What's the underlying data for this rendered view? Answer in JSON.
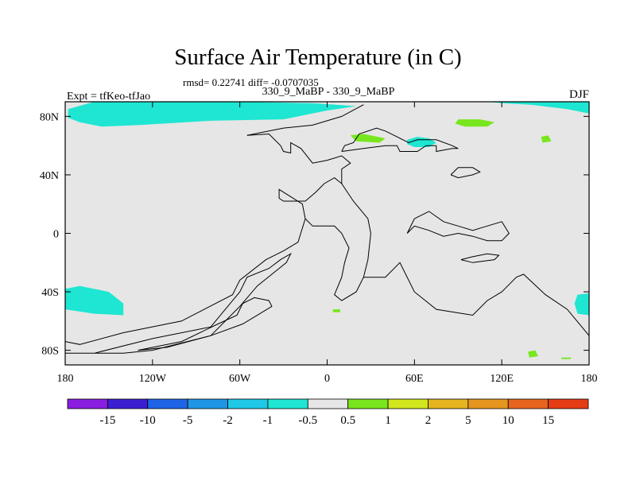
{
  "chart_data": {
    "type": "heatmap",
    "title": "Surface Air Temperature (in C)",
    "stats_line": "rmsd= 0.22741 diff= -0.0707035",
    "subtitle": "330_9_MaBP - 330_9_MaBP",
    "left_label": "Expt = tfKeo-tfJao",
    "right_label": "DJF",
    "xlim": [
      -180,
      180
    ],
    "ylim": [
      -90,
      90
    ],
    "x_ticks": [
      {
        "value": -180,
        "label": "180"
      },
      {
        "value": -120,
        "label": "120W"
      },
      {
        "value": -60,
        "label": "60W"
      },
      {
        "value": 0,
        "label": "0"
      },
      {
        "value": 60,
        "label": "60E"
      },
      {
        "value": 120,
        "label": "120E"
      },
      {
        "value": 180,
        "label": "180"
      }
    ],
    "y_ticks": [
      {
        "value": 80,
        "label": "80N"
      },
      {
        "value": 40,
        "label": "40N"
      },
      {
        "value": 0,
        "label": "0"
      },
      {
        "value": -40,
        "label": "40S"
      },
      {
        "value": -80,
        "label": "80S"
      }
    ],
    "background_color": "#e6e6e6",
    "colorbar": {
      "labels": [
        "-15",
        "-10",
        "-5",
        "-2",
        "-1",
        "-0.5",
        "0.5",
        "1",
        "2",
        "5",
        "10",
        "15"
      ],
      "colors": [
        "#8a1ee0",
        "#3c1ed2",
        "#1e64e6",
        "#1e96e6",
        "#1ec8e6",
        "#1ee6d2",
        "#e6e6e6",
        "#78e61e",
        "#d2e61e",
        "#e6b41e",
        "#e6961e",
        "#e6641e",
        "#e63c14"
      ]
    },
    "regions": [
      {
        "name": "arctic-band",
        "color": "#1ee6d2",
        "points": [
          [
            -178,
            85
          ],
          [
            -160,
            90
          ],
          [
            -60,
            90
          ],
          [
            -10,
            89
          ],
          [
            20,
            87
          ],
          [
            0,
            84
          ],
          [
            -30,
            78
          ],
          [
            -80,
            77
          ],
          [
            -130,
            74
          ],
          [
            -155,
            73
          ],
          [
            -170,
            76
          ],
          [
            -178,
            79
          ]
        ]
      },
      {
        "name": "arctic-east",
        "color": "#1ee6d2",
        "points": [
          [
            110,
            90
          ],
          [
            180,
            90
          ],
          [
            180,
            82
          ],
          [
            165,
            85
          ],
          [
            140,
            88
          ],
          [
            120,
            89
          ]
        ]
      },
      {
        "name": "central-asia",
        "color": "#1ee6d2",
        "points": [
          [
            55,
            64
          ],
          [
            62,
            66
          ],
          [
            70,
            65
          ],
          [
            75,
            62
          ],
          [
            70,
            59
          ],
          [
            60,
            59
          ],
          [
            55,
            61
          ]
        ]
      },
      {
        "name": "pacific-north",
        "color": "#78e61e",
        "points": [
          [
            90,
            78
          ],
          [
            105,
            78
          ],
          [
            115,
            76
          ],
          [
            110,
            73
          ],
          [
            95,
            73
          ],
          [
            88,
            75
          ]
        ]
      },
      {
        "name": "north-africa-green",
        "color": "#78e61e",
        "points": [
          [
            16,
            67
          ],
          [
            25,
            68
          ],
          [
            40,
            65
          ],
          [
            36,
            62
          ],
          [
            20,
            63
          ]
        ]
      },
      {
        "name": "north-pacific-green",
        "color": "#78e61e",
        "points": [
          [
            147,
            66
          ],
          [
            152,
            67
          ],
          [
            154,
            63
          ],
          [
            148,
            62
          ]
        ]
      },
      {
        "name": "southern-ocean-west",
        "color": "#1ee6d2",
        "points": [
          [
            -180,
            -38
          ],
          [
            -170,
            -36
          ],
          [
            -150,
            -40
          ],
          [
            -140,
            -48
          ],
          [
            -140,
            -56
          ],
          [
            -160,
            -55
          ],
          [
            -180,
            -52
          ]
        ]
      },
      {
        "name": "southern-ocean-east",
        "color": "#1ee6d2",
        "points": [
          [
            172,
            -42
          ],
          [
            180,
            -41
          ],
          [
            180,
            -56
          ],
          [
            172,
            -55
          ],
          [
            170,
            -48
          ]
        ]
      },
      {
        "name": "antarctic-green",
        "color": "#78e61e",
        "points": [
          [
            138,
            -81
          ],
          [
            143,
            -80
          ],
          [
            145,
            -84
          ],
          [
            139,
            -85
          ]
        ]
      },
      {
        "name": "antarctic-green-small",
        "color": "#78e61e",
        "points": [
          [
            161,
            -85
          ],
          [
            168,
            -85
          ],
          [
            167,
            -86
          ],
          [
            161,
            -86
          ]
        ]
      },
      {
        "name": "ocean-speck",
        "color": "#78e61e",
        "points": [
          [
            4,
            -52
          ],
          [
            9,
            -52
          ],
          [
            9,
            -54
          ],
          [
            4,
            -54
          ]
        ]
      }
    ],
    "coastlines": [
      [
        [
          -180,
          -74
        ],
        [
          -170,
          -76
        ],
        [
          -140,
          -68
        ],
        [
          -100,
          -60
        ],
        [
          -65,
          -42
        ],
        [
          -60,
          -32
        ],
        [
          -42,
          -18
        ],
        [
          -30,
          -12
        ],
        [
          -20,
          -6
        ],
        [
          -15,
          10
        ],
        [
          -17,
          20
        ],
        [
          -33,
          30
        ],
        [
          -33,
          24
        ],
        [
          -30,
          22
        ],
        [
          -15,
          22
        ],
        [
          -8,
          28
        ],
        [
          -2,
          34
        ],
        [
          5,
          38
        ],
        [
          10,
          34
        ],
        [
          10,
          44
        ],
        [
          16,
          48
        ],
        [
          10,
          53
        ],
        [
          0,
          50
        ],
        [
          -10,
          48
        ],
        [
          -18,
          58
        ],
        [
          -25,
          62
        ],
        [
          -25,
          55
        ],
        [
          -30,
          56
        ],
        [
          -32,
          60
        ],
        [
          -40,
          68
        ],
        [
          -55,
          67
        ]
      ],
      [
        [
          -55,
          67
        ],
        [
          -40,
          70
        ],
        [
          -30,
          72
        ],
        [
          -10,
          74
        ],
        [
          10,
          80
        ],
        [
          25,
          88
        ]
      ],
      [
        [
          -180,
          -82
        ],
        [
          -160,
          -82
        ],
        [
          -120,
          -72
        ],
        [
          -80,
          -64
        ],
        [
          -70,
          -52
        ],
        [
          -60,
          -40
        ],
        [
          -55,
          -30
        ],
        [
          -40,
          -24
        ],
        [
          -32,
          -18
        ],
        [
          -25,
          -14
        ],
        [
          -28,
          -20
        ],
        [
          -38,
          -28
        ],
        [
          -48,
          -36
        ],
        [
          -60,
          -50
        ],
        [
          -80,
          -70
        ],
        [
          -120,
          -80
        ],
        [
          -140,
          -82
        ],
        [
          -180,
          -82
        ]
      ],
      [
        [
          -130,
          -80
        ],
        [
          -100,
          -74
        ],
        [
          -75,
          -62
        ],
        [
          -62,
          -56
        ],
        [
          -58,
          -48
        ],
        [
          -50,
          -44
        ],
        [
          -40,
          -46
        ],
        [
          -38,
          -50
        ],
        [
          -58,
          -62
        ],
        [
          -80,
          -70
        ],
        [
          -110,
          -78
        ],
        [
          -130,
          -80
        ]
      ],
      [
        [
          10,
          56
        ],
        [
          25,
          58
        ],
        [
          40,
          60
        ],
        [
          48,
          60
        ],
        [
          50,
          56
        ],
        [
          62,
          56
        ],
        [
          68,
          60
        ],
        [
          75,
          60
        ],
        [
          75,
          56
        ],
        [
          86,
          58
        ],
        [
          90,
          58
        ],
        [
          86,
          60
        ],
        [
          75,
          64
        ],
        [
          68,
          64
        ],
        [
          62,
          64
        ],
        [
          56,
          62
        ],
        [
          48,
          66
        ],
        [
          40,
          70
        ],
        [
          34,
          72
        ],
        [
          22,
          68
        ],
        [
          18,
          62
        ],
        [
          12,
          60
        ],
        [
          10,
          56
        ]
      ],
      [
        [
          10,
          34
        ],
        [
          18,
          22
        ],
        [
          28,
          10
        ],
        [
          30,
          0
        ],
        [
          28,
          -18
        ],
        [
          25,
          -30
        ],
        [
          20,
          -40
        ],
        [
          10,
          -46
        ],
        [
          5,
          -42
        ],
        [
          10,
          -30
        ],
        [
          12,
          -20
        ],
        [
          15,
          -10
        ],
        [
          10,
          0
        ],
        [
          5,
          5
        ],
        [
          -5,
          5
        ],
        [
          -10,
          5
        ],
        [
          -15,
          10
        ]
      ],
      [
        [
          25,
          -30
        ],
        [
          40,
          -30
        ],
        [
          50,
          -20
        ],
        [
          60,
          -40
        ],
        [
          75,
          -52
        ],
        [
          100,
          -56
        ],
        [
          110,
          -46
        ],
        [
          120,
          -40
        ],
        [
          130,
          -30
        ],
        [
          135,
          -28
        ],
        [
          150,
          -42
        ],
        [
          165,
          -52
        ],
        [
          180,
          -70
        ]
      ],
      [
        [
          60,
          10
        ],
        [
          70,
          15
        ],
        [
          80,
          8
        ],
        [
          90,
          5
        ],
        [
          100,
          2
        ],
        [
          110,
          5
        ],
        [
          120,
          8
        ],
        [
          125,
          0
        ],
        [
          120,
          -5
        ],
        [
          110,
          -5
        ],
        [
          100,
          -2
        ],
        [
          90,
          0
        ],
        [
          80,
          -2
        ],
        [
          70,
          2
        ],
        [
          60,
          5
        ],
        [
          55,
          0
        ],
        [
          60,
          10
        ]
      ],
      [
        [
          85,
          40
        ],
        [
          90,
          45
        ],
        [
          100,
          45
        ],
        [
          105,
          42
        ],
        [
          100,
          40
        ],
        [
          90,
          38
        ],
        [
          85,
          40
        ]
      ],
      [
        [
          92,
          -18
        ],
        [
          100,
          -20
        ],
        [
          115,
          -18
        ],
        [
          118,
          -15
        ],
        [
          110,
          -14
        ],
        [
          100,
          -16
        ],
        [
          92,
          -18
        ]
      ]
    ]
  }
}
